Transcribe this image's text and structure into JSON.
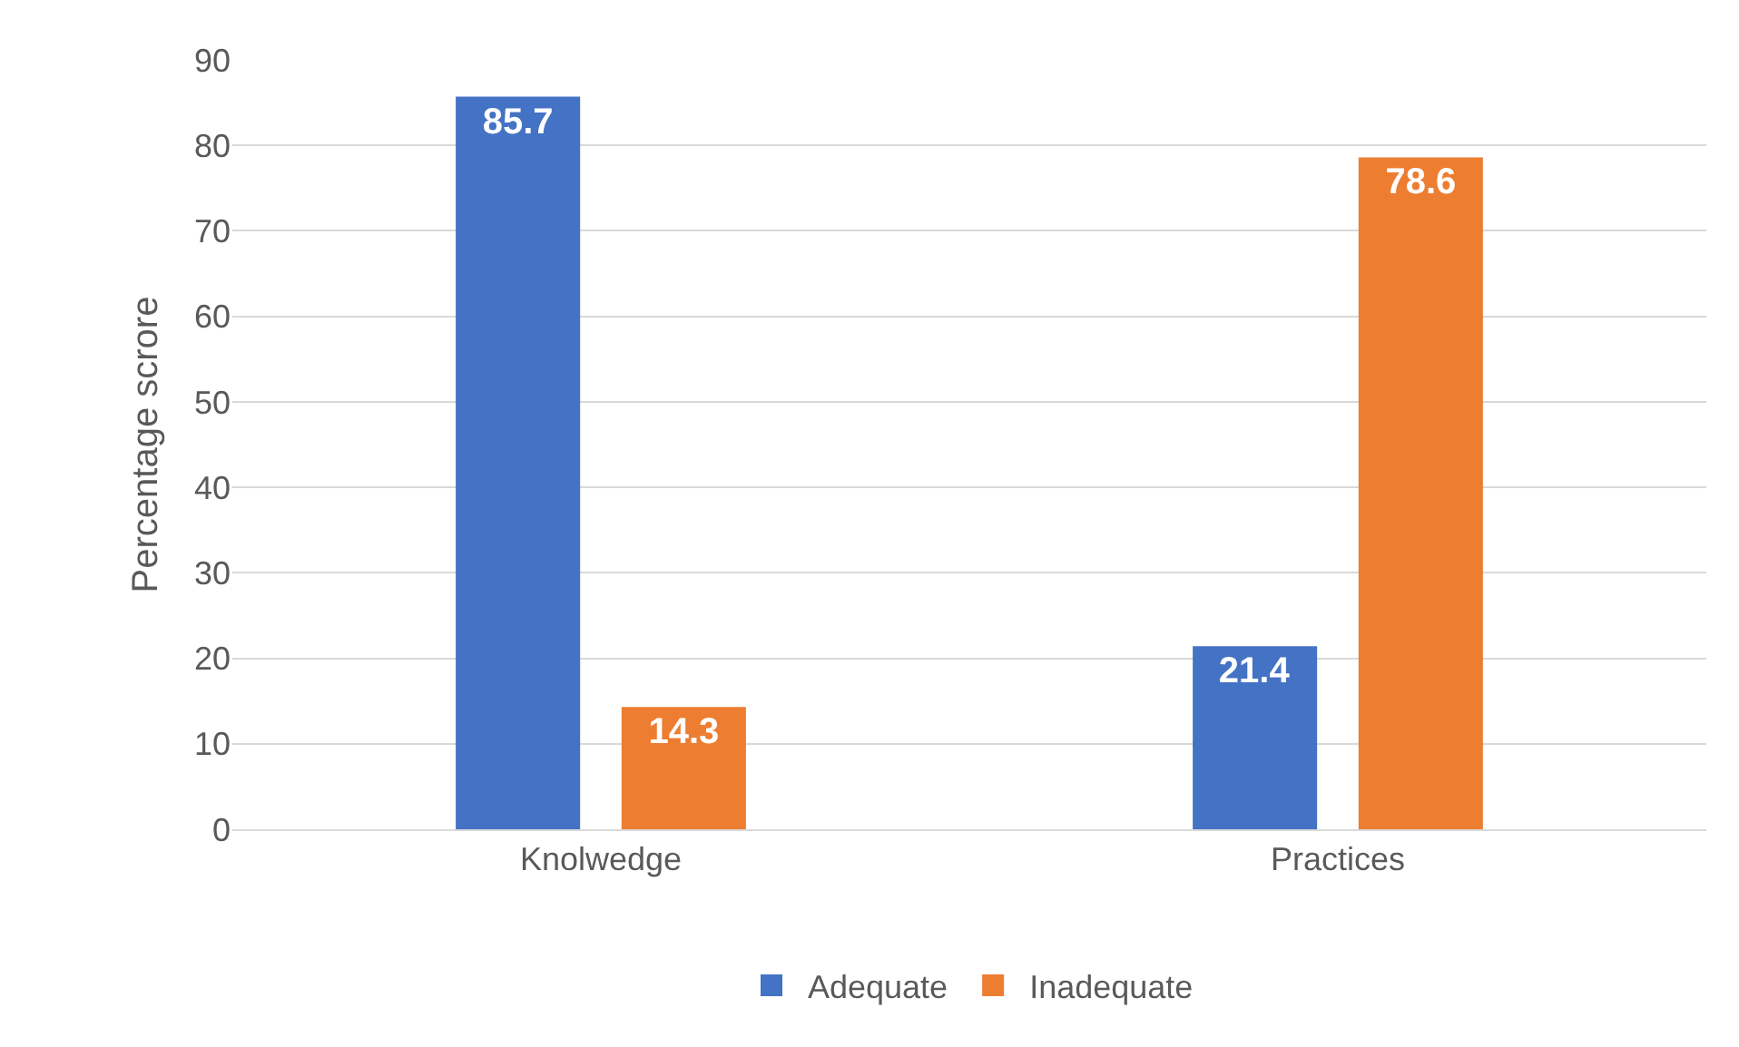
{
  "chart_data": {
    "type": "bar",
    "ylabel": "Percentage scrore",
    "categories": [
      "Knolwedge",
      "Practices"
    ],
    "series": [
      {
        "name": "Adequate",
        "color": "#4472c4",
        "values": [
          85.7,
          21.4
        ]
      },
      {
        "name": "Inadequate",
        "color": "#ed7d31",
        "values": [
          14.3,
          78.6
        ]
      }
    ],
    "ylim": [
      0,
      90
    ],
    "yticks": [
      0,
      10,
      20,
      30,
      40,
      50,
      60,
      70,
      80,
      90
    ],
    "grid": "y",
    "legend": "bottom",
    "data_labels": true
  }
}
